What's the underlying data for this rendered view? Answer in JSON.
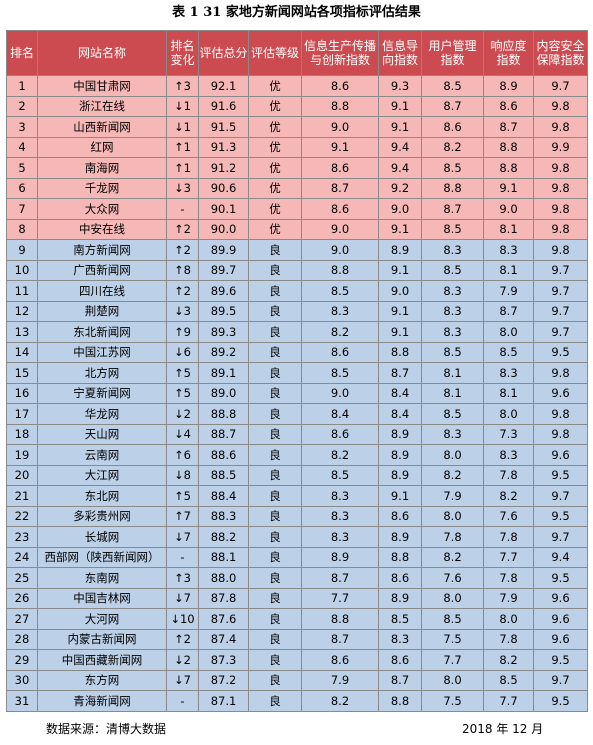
{
  "title": "表 1 31 家地方新闻网站各项指标评估结果",
  "headers": [
    "排名",
    "网站名称",
    "排名\n变化",
    "评估总分",
    "评估等级",
    "信息生产传播\n与创新指数",
    "信息导\n向指数",
    "用户管理\n指数",
    "响应度\n指数",
    "内容安全\n保障指数"
  ],
  "rows": [
    {
      "rank": "1",
      "site": "中国甘肃网",
      "change": "↑3",
      "total": "92.1",
      "grade": "优",
      "info": "8.6",
      "guide": "9.3",
      "user": "8.5",
      "resp": "8.9",
      "safety": "9.7"
    },
    {
      "rank": "2",
      "site": "浙江在线",
      "change": "↓1",
      "total": "91.6",
      "grade": "优",
      "info": "8.8",
      "guide": "9.1",
      "user": "8.7",
      "resp": "8.6",
      "safety": "9.8"
    },
    {
      "rank": "3",
      "site": "山西新闻网",
      "change": "↓1",
      "total": "91.5",
      "grade": "优",
      "info": "9.0",
      "guide": "9.1",
      "user": "8.6",
      "resp": "8.7",
      "safety": "9.8"
    },
    {
      "rank": "4",
      "site": "红网",
      "change": "↑1",
      "total": "91.3",
      "grade": "优",
      "info": "9.1",
      "guide": "9.4",
      "user": "8.2",
      "resp": "8.8",
      "safety": "9.9"
    },
    {
      "rank": "5",
      "site": "南海网",
      "change": "↑1",
      "total": "91.2",
      "grade": "优",
      "info": "8.6",
      "guide": "9.4",
      "user": "8.5",
      "resp": "8.8",
      "safety": "9.8"
    },
    {
      "rank": "6",
      "site": "千龙网",
      "change": "↓3",
      "total": "90.6",
      "grade": "优",
      "info": "8.7",
      "guide": "9.2",
      "user": "8.8",
      "resp": "9.1",
      "safety": "9.8"
    },
    {
      "rank": "7",
      "site": "大众网",
      "change": "-",
      "total": "90.1",
      "grade": "优",
      "info": "8.6",
      "guide": "9.0",
      "user": "8.7",
      "resp": "9.0",
      "safety": "9.8"
    },
    {
      "rank": "8",
      "site": "中安在线",
      "change": "↑2",
      "total": "90.0",
      "grade": "优",
      "info": "9.0",
      "guide": "9.1",
      "user": "8.5",
      "resp": "8.1",
      "safety": "9.8"
    },
    {
      "rank": "9",
      "site": "南方新闻网",
      "change": "↑2",
      "total": "89.9",
      "grade": "良",
      "info": "9.0",
      "guide": "8.9",
      "user": "8.3",
      "resp": "8.3",
      "safety": "9.8"
    },
    {
      "rank": "10",
      "site": "广西新闻网",
      "change": "↑8",
      "total": "89.7",
      "grade": "良",
      "info": "8.8",
      "guide": "9.1",
      "user": "8.5",
      "resp": "8.1",
      "safety": "9.7"
    },
    {
      "rank": "11",
      "site": "四川在线",
      "change": "↑2",
      "total": "89.6",
      "grade": "良",
      "info": "8.5",
      "guide": "9.0",
      "user": "8.3",
      "resp": "7.9",
      "safety": "9.7"
    },
    {
      "rank": "12",
      "site": "荆楚网",
      "change": "↓3",
      "total": "89.5",
      "grade": "良",
      "info": "8.3",
      "guide": "9.1",
      "user": "8.3",
      "resp": "8.7",
      "safety": "9.7"
    },
    {
      "rank": "13",
      "site": "东北新闻网",
      "change": "↑9",
      "total": "89.3",
      "grade": "良",
      "info": "8.2",
      "guide": "9.1",
      "user": "8.3",
      "resp": "8.0",
      "safety": "9.7"
    },
    {
      "rank": "14",
      "site": "中国江苏网",
      "change": "↓6",
      "total": "89.2",
      "grade": "良",
      "info": "8.6",
      "guide": "8.8",
      "user": "8.5",
      "resp": "8.5",
      "safety": "9.5"
    },
    {
      "rank": "15",
      "site": "北方网",
      "change": "↑5",
      "total": "89.1",
      "grade": "良",
      "info": "8.5",
      "guide": "8.7",
      "user": "8.1",
      "resp": "8.3",
      "safety": "9.8"
    },
    {
      "rank": "16",
      "site": "宁夏新闻网",
      "change": "↑5",
      "total": "89.0",
      "grade": "良",
      "info": "9.0",
      "guide": "8.4",
      "user": "8.1",
      "resp": "8.1",
      "safety": "9.6"
    },
    {
      "rank": "17",
      "site": "华龙网",
      "change": "↓2",
      "total": "88.8",
      "grade": "良",
      "info": "8.4",
      "guide": "8.4",
      "user": "8.5",
      "resp": "8.0",
      "safety": "9.8"
    },
    {
      "rank": "18",
      "site": "天山网",
      "change": "↓4",
      "total": "88.7",
      "grade": "良",
      "info": "8.6",
      "guide": "8.9",
      "user": "8.3",
      "resp": "7.3",
      "safety": "9.8"
    },
    {
      "rank": "19",
      "site": "云南网",
      "change": "↑6",
      "total": "88.6",
      "grade": "良",
      "info": "8.2",
      "guide": "8.9",
      "user": "8.0",
      "resp": "8.3",
      "safety": "9.6"
    },
    {
      "rank": "20",
      "site": "大江网",
      "change": "↓8",
      "total": "88.5",
      "grade": "良",
      "info": "8.5",
      "guide": "8.9",
      "user": "8.2",
      "resp": "7.8",
      "safety": "9.5"
    },
    {
      "rank": "21",
      "site": "东北网",
      "change": "↑5",
      "total": "88.4",
      "grade": "良",
      "info": "8.3",
      "guide": "9.1",
      "user": "7.9",
      "resp": "8.2",
      "safety": "9.7"
    },
    {
      "rank": "22",
      "site": "多彩贵州网",
      "change": "↑7",
      "total": "88.3",
      "grade": "良",
      "info": "8.3",
      "guide": "8.6",
      "user": "8.0",
      "resp": "7.6",
      "safety": "9.5"
    },
    {
      "rank": "23",
      "site": "长城网",
      "change": "↓7",
      "total": "88.2",
      "grade": "良",
      "info": "8.3",
      "guide": "8.9",
      "user": "7.8",
      "resp": "7.8",
      "safety": "9.7"
    },
    {
      "rank": "24",
      "site": "西部网（陕西新闻网）",
      "change": "-",
      "total": "88.1",
      "grade": "良",
      "info": "8.9",
      "guide": "8.8",
      "user": "8.2",
      "resp": "7.7",
      "safety": "9.4"
    },
    {
      "rank": "25",
      "site": "东南网",
      "change": "↑3",
      "total": "88.0",
      "grade": "良",
      "info": "8.7",
      "guide": "8.6",
      "user": "7.6",
      "resp": "7.8",
      "safety": "9.5"
    },
    {
      "rank": "26",
      "site": "中国吉林网",
      "change": "↓7",
      "total": "87.8",
      "grade": "良",
      "info": "7.7",
      "guide": "8.9",
      "user": "8.0",
      "resp": "7.9",
      "safety": "9.6"
    },
    {
      "rank": "27",
      "site": "大河网",
      "change": "↓10",
      "total": "87.6",
      "grade": "良",
      "info": "8.8",
      "guide": "8.5",
      "user": "8.5",
      "resp": "8.0",
      "safety": "9.6"
    },
    {
      "rank": "28",
      "site": "内蒙古新闻网",
      "change": "↑2",
      "total": "87.4",
      "grade": "良",
      "info": "8.7",
      "guide": "8.3",
      "user": "7.5",
      "resp": "7.8",
      "safety": "9.6"
    },
    {
      "rank": "29",
      "site": "中国西藏新闻网",
      "change": "↓2",
      "total": "87.3",
      "grade": "良",
      "info": "8.6",
      "guide": "8.6",
      "user": "7.7",
      "resp": "8.2",
      "safety": "9.5"
    },
    {
      "rank": "30",
      "site": "东方网",
      "change": "↓7",
      "total": "87.2",
      "grade": "良",
      "info": "7.9",
      "guide": "8.7",
      "user": "8.0",
      "resp": "8.5",
      "safety": "9.7"
    },
    {
      "rank": "31",
      "site": "青海新闻网",
      "change": "-",
      "total": "87.1",
      "grade": "良",
      "info": "8.2",
      "guide": "8.8",
      "user": "7.5",
      "resp": "7.7",
      "safety": "9.5"
    }
  ],
  "footer": {
    "source": "数据来源：清博大数据",
    "date": "2018 年 12 月"
  },
  "colors": {
    "header_bg": "#cc4b50",
    "excellent_row_bg": "#f6b8b6",
    "good_row_bg": "#bcd0e8"
  }
}
